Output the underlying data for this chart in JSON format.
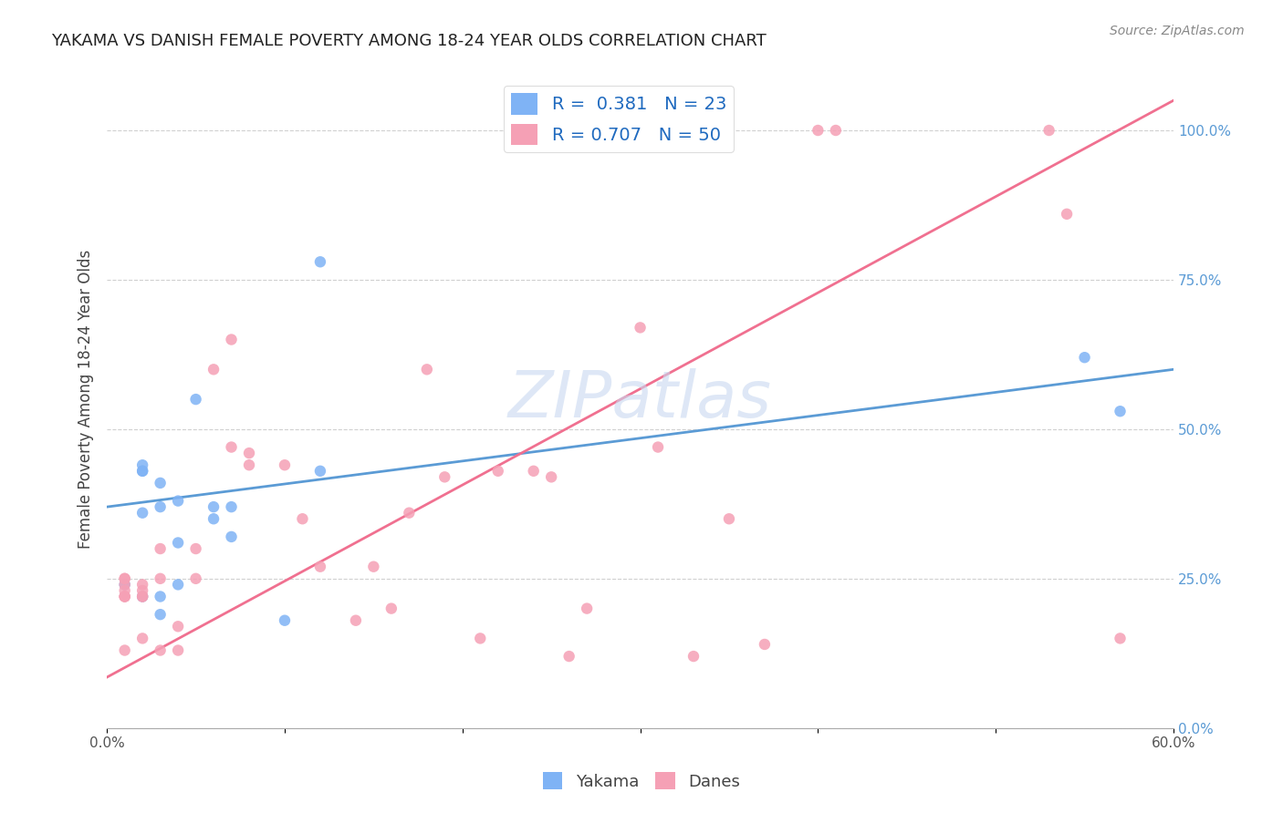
{
  "title": "YAKAMA VS DANISH FEMALE POVERTY AMONG 18-24 YEAR OLDS CORRELATION CHART",
  "source": "Source: ZipAtlas.com",
  "xlabel_bottom": "",
  "ylabel": "Female Poverty Among 18-24 Year Olds",
  "xlim": [
    0.0,
    0.6
  ],
  "ylim": [
    0.0,
    1.1
  ],
  "xticks": [
    0.0,
    0.1,
    0.2,
    0.3,
    0.4,
    0.5,
    0.6
  ],
  "xtick_labels": [
    "0.0%",
    "",
    "",
    "",
    "",
    "",
    "60.0%"
  ],
  "ytick_labels_right": [
    "0.0%",
    "25.0%",
    "50.0%",
    "75.0%",
    "100.0%"
  ],
  "ytick_positions_right": [
    0.0,
    0.25,
    0.5,
    0.75,
    1.0
  ],
  "legend_r1": "R =  0.381   N = 23",
  "legend_r2": "R = 0.707   N = 50",
  "yakama_color": "#7fb3f5",
  "danes_color": "#f5a0b5",
  "trendline_yakama_color": "#5b9bd5",
  "trendline_danes_color": "#f07090",
  "watermark": "ZIPatlas",
  "watermark_color": "#c8d8f0",
  "background_color": "#ffffff",
  "grid_color": "#d0d0d0",
  "scatter_size": 80,
  "yakama_points_x": [
    0.01,
    0.02,
    0.02,
    0.02,
    0.02,
    0.02,
    0.03,
    0.03,
    0.03,
    0.03,
    0.04,
    0.04,
    0.04,
    0.05,
    0.06,
    0.06,
    0.07,
    0.07,
    0.1,
    0.12,
    0.12,
    0.55,
    0.57
  ],
  "yakama_points_y": [
    0.24,
    0.43,
    0.43,
    0.44,
    0.22,
    0.36,
    0.37,
    0.41,
    0.22,
    0.19,
    0.31,
    0.38,
    0.24,
    0.55,
    0.37,
    0.35,
    0.32,
    0.37,
    0.18,
    0.78,
    0.43,
    0.62,
    0.53
  ],
  "danes_points_x": [
    0.01,
    0.01,
    0.01,
    0.01,
    0.01,
    0.01,
    0.01,
    0.01,
    0.02,
    0.02,
    0.02,
    0.02,
    0.02,
    0.03,
    0.03,
    0.03,
    0.04,
    0.04,
    0.05,
    0.05,
    0.06,
    0.07,
    0.07,
    0.08,
    0.08,
    0.1,
    0.11,
    0.12,
    0.14,
    0.15,
    0.16,
    0.17,
    0.18,
    0.19,
    0.21,
    0.22,
    0.24,
    0.25,
    0.26,
    0.27,
    0.3,
    0.31,
    0.33,
    0.35,
    0.37,
    0.4,
    0.41,
    0.53,
    0.54,
    0.57
  ],
  "danes_points_y": [
    0.22,
    0.22,
    0.22,
    0.23,
    0.24,
    0.25,
    0.25,
    0.13,
    0.22,
    0.23,
    0.24,
    0.22,
    0.15,
    0.3,
    0.25,
    0.13,
    0.13,
    0.17,
    0.25,
    0.3,
    0.6,
    0.47,
    0.65,
    0.44,
    0.46,
    0.44,
    0.35,
    0.27,
    0.18,
    0.27,
    0.2,
    0.36,
    0.6,
    0.42,
    0.15,
    0.43,
    0.43,
    0.42,
    0.12,
    0.2,
    0.67,
    0.47,
    0.12,
    0.35,
    0.14,
    1.0,
    1.0,
    1.0,
    0.86,
    0.15
  ],
  "yakama_trend_x": [
    0.0,
    0.6
  ],
  "yakama_trend_y": [
    0.37,
    0.6
  ],
  "danes_trend_x": [
    0.0,
    0.6
  ],
  "danes_trend_y": [
    0.085,
    1.05
  ]
}
